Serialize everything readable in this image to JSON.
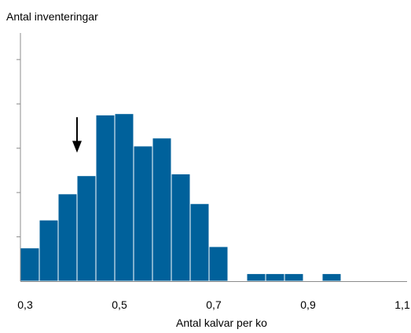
{
  "chart_data": {
    "type": "bar",
    "title": "",
    "ylabel": "Antal inventeringar",
    "xlabel": "Antal kalvar per ko",
    "x_tick_labels": [
      "0,3",
      "0,5",
      "0,7",
      "0,9",
      "1,1"
    ],
    "x_tick_values": [
      0.3,
      0.5,
      0.7,
      0.9,
      1.1
    ],
    "xlim": [
      0.29,
      1.11
    ],
    "ylim": [
      0,
      5.6
    ],
    "y_ticks": [
      1,
      2,
      3,
      4,
      5
    ],
    "y_tick_labels_shown": false,
    "bin_width": 0.04,
    "bins": [
      {
        "start": 0.29,
        "value": 0.75
      },
      {
        "start": 0.33,
        "value": 1.38
      },
      {
        "start": 0.37,
        "value": 1.97
      },
      {
        "start": 0.41,
        "value": 2.38
      },
      {
        "start": 0.45,
        "value": 3.75
      },
      {
        "start": 0.49,
        "value": 3.78
      },
      {
        "start": 0.53,
        "value": 3.05
      },
      {
        "start": 0.57,
        "value": 3.23
      },
      {
        "start": 0.61,
        "value": 2.42
      },
      {
        "start": 0.65,
        "value": 1.75
      },
      {
        "start": 0.69,
        "value": 0.78
      },
      {
        "start": 0.73,
        "value": 0
      },
      {
        "start": 0.77,
        "value": 0.17
      },
      {
        "start": 0.81,
        "value": 0.17
      },
      {
        "start": 0.85,
        "value": 0.17
      },
      {
        "start": 0.89,
        "value": 0
      },
      {
        "start": 0.93,
        "value": 0.17
      }
    ],
    "annotation": {
      "type": "arrow-down",
      "x": 0.41,
      "y_from": 3.7,
      "y_to": 2.9
    },
    "grid": false,
    "legend": "none",
    "bar_color": "#00619b",
    "bar_edge_color": "#ffffff"
  }
}
